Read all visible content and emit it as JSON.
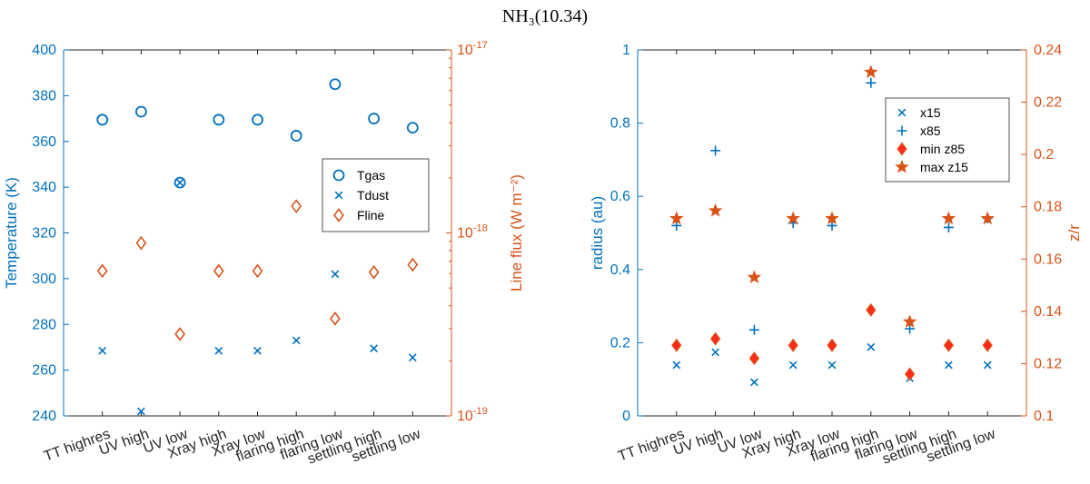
{
  "title": "NH₃(10.34)",
  "colors": {
    "blue": "#0072BD",
    "orange": "#D95319",
    "red": "#FF2A1A"
  },
  "chart_data": [
    {
      "type": "scatter",
      "categories": [
        "TT highres",
        "UV high",
        "UV low",
        "Xray high",
        "Xray low",
        "flaring high",
        "flaring low",
        "settling high",
        "settling low"
      ],
      "ylabel_left": "Temperature (K)",
      "ylim_left": [
        240,
        400
      ],
      "yticks_left": [
        "240",
        "260",
        "280",
        "300",
        "320",
        "340",
        "360",
        "380",
        "400"
      ],
      "ylabel_right": "Line flux (W m⁻²)",
      "ylim_right_log": [
        1e-19,
        1e-17
      ],
      "yticks_right": [
        {
          "base": "10",
          "exp": "-19",
          "value": 1e-19
        },
        {
          "base": "10",
          "exp": "-18",
          "value": 1e-18
        },
        {
          "base": "10",
          "exp": "-17",
          "value": 1e-17
        }
      ],
      "legend": {
        "placement": "right",
        "entries": [
          "Tgas",
          "Tdust",
          "Fline"
        ]
      },
      "series": [
        {
          "name": "Tgas",
          "axis": "left",
          "marker": "circle",
          "color": "#0072BD",
          "values": [
            369.5,
            373,
            342,
            369.5,
            369.5,
            362.5,
            385,
            370,
            366
          ]
        },
        {
          "name": "Tdust",
          "axis": "left",
          "marker": "x",
          "color": "#0072BD",
          "values": [
            268.5,
            242,
            342,
            268.5,
            268.5,
            273,
            302,
            269.5,
            265.5
          ]
        },
        {
          "name": "Fline",
          "axis": "right",
          "marker": "diamond",
          "color": "#D95319",
          "values": [
            6.2e-19,
            8.8e-19,
            2.8e-19,
            6.2e-19,
            6.2e-19,
            1.4e-18,
            3.4e-19,
            6.1e-19,
            6.7e-19
          ]
        }
      ]
    },
    {
      "type": "scatter",
      "categories": [
        "TT highres",
        "UV high",
        "UV low",
        "Xray high",
        "Xray low",
        "flaring high",
        "flaring low",
        "settling high",
        "settling low"
      ],
      "ylabel_left": "radius (au)",
      "ylim_left": [
        0,
        1
      ],
      "yticks_left": [
        "0",
        "0.2",
        "0.4",
        "0.6",
        "0.8",
        "1"
      ],
      "ylabel_right": "z/r",
      "ylim_right": [
        0.1,
        0.24
      ],
      "yticks_right": [
        "0.1",
        "0.12",
        "0.14",
        "0.16",
        "0.18",
        "0.2",
        "0.22",
        "0.24"
      ],
      "legend": {
        "placement": "top-right",
        "entries": [
          "x15",
          "x85",
          "min z85",
          "max z15"
        ]
      },
      "series": [
        {
          "name": "x15",
          "axis": "left",
          "marker": "x",
          "color": "#0072BD",
          "values": [
            0.139,
            0.174,
            0.092,
            0.139,
            0.139,
            0.188,
            0.103,
            0.139,
            0.139
          ]
        },
        {
          "name": "x85",
          "axis": "left",
          "marker": "plus",
          "color": "#0072BD",
          "values": [
            0.52,
            0.725,
            0.235,
            0.527,
            0.52,
            0.91,
            0.238,
            0.515,
            0.54
          ]
        },
        {
          "name": "min z85",
          "axis": "right",
          "marker": "diamond",
          "color": "#FF2A1A",
          "values": [
            0.127,
            0.1295,
            0.122,
            0.127,
            0.127,
            0.1405,
            0.116,
            0.127,
            0.127
          ]
        },
        {
          "name": "max z15",
          "axis": "right",
          "marker": "star",
          "color": "#D95319",
          "values": [
            0.1755,
            0.1785,
            0.153,
            0.1755,
            0.1755,
            0.2315,
            0.136,
            0.1755,
            0.1755
          ]
        }
      ]
    }
  ]
}
